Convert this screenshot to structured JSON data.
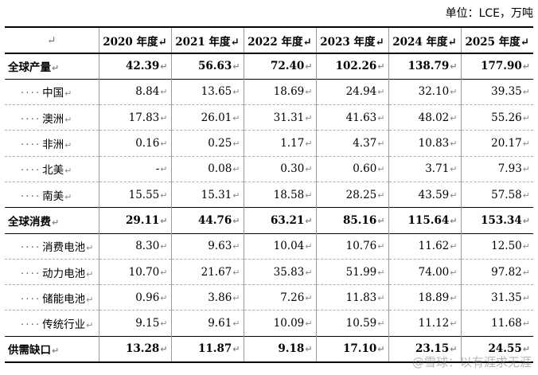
{
  "unit_label": "单位：LCE，万吨",
  "header": [
    "↵",
    "2020 年度↵",
    "2021 年度↵",
    "2022 年度↵",
    "2023 年度↵",
    "2024 年度↵",
    "2025 年度↵"
  ],
  "rows": [
    {
      "label": "全球产量",
      "type": "total",
      "values": [
        "42.39",
        "56.63",
        "72.40",
        "102.26",
        "138.79",
        "177.90"
      ]
    },
    {
      "label": "中国",
      "type": "sub",
      "values": [
        "8.84",
        "13.65",
        "18.69",
        "24.94",
        "32.10",
        "39.35"
      ]
    },
    {
      "label": "澳洲",
      "type": "sub",
      "values": [
        "17.83",
        "26.01",
        "31.31",
        "41.63",
        "48.02",
        "55.26"
      ]
    },
    {
      "label": "非洲",
      "type": "sub",
      "values": [
        "0.16",
        "0.25",
        "1.17",
        "4.37",
        "10.83",
        "20.17"
      ]
    },
    {
      "label": "北美",
      "type": "sub",
      "values": [
        "-",
        "0.08",
        "0.30",
        "0.60",
        "3.71",
        "7.93"
      ]
    },
    {
      "label": "南美",
      "type": "sub",
      "values": [
        "15.55",
        "15.31",
        "18.58",
        "28.25",
        "43.59",
        "57.58"
      ]
    },
    {
      "label": "全球消费",
      "type": "total",
      "values": [
        "29.11",
        "44.76",
        "63.21",
        "85.16",
        "115.64",
        "153.34"
      ]
    },
    {
      "label": "消费电池",
      "type": "sub",
      "values": [
        "8.30",
        "9.63",
        "10.04",
        "10.76",
        "11.62",
        "12.50"
      ]
    },
    {
      "label": "动力电池",
      "type": "sub",
      "values": [
        "10.70",
        "21.67",
        "35.83",
        "51.99",
        "74.00",
        "97.82"
      ]
    },
    {
      "label": "储能电池",
      "type": "sub",
      "values": [
        "0.96",
        "3.86",
        "7.26",
        "11.83",
        "18.89",
        "31.35"
      ]
    },
    {
      "label": "传统行业",
      "type": "sub",
      "values": [
        "9.15",
        "9.61",
        "10.09",
        "10.59",
        "11.12",
        "11.68"
      ]
    },
    {
      "label": "供需缺口",
      "type": "total",
      "values": [
        "13.28",
        "11.87",
        "9.18",
        "17.10",
        "23.15",
        "24.55"
      ]
    }
  ],
  "watermark": "@雪球：以有涯求无涯"
}
